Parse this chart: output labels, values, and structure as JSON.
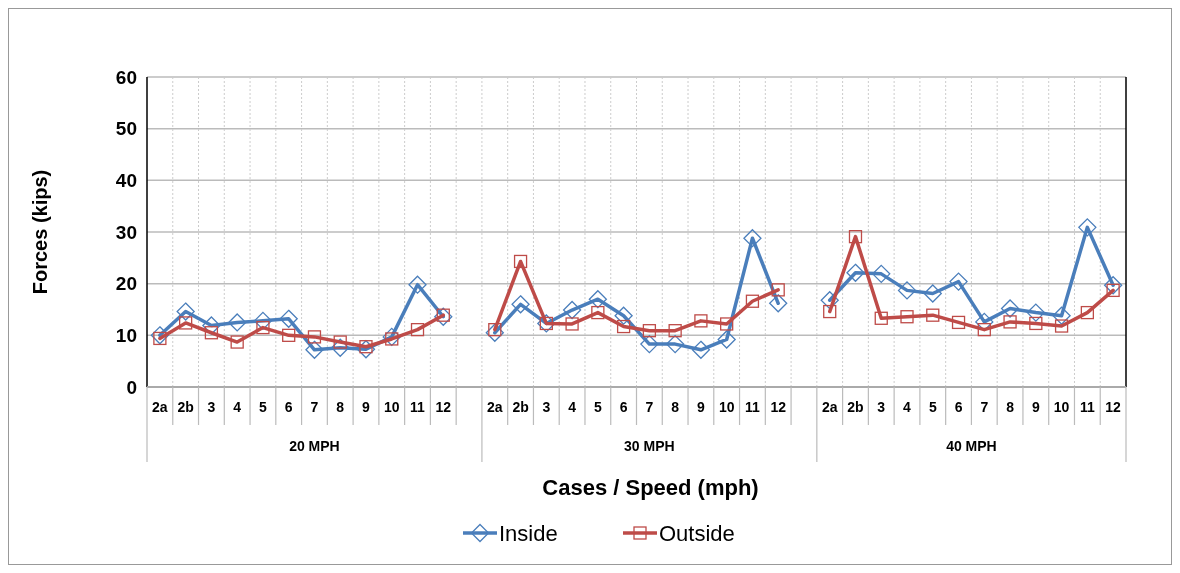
{
  "chart_data": {
    "type": "line",
    "xlabel": "Cases / Speed (mph)",
    "ylabel": "Forces (kips)",
    "categories": [
      "2a",
      "2b",
      "3",
      "4",
      "5",
      "6",
      "7",
      "8",
      "9",
      "10",
      "11",
      "12",
      null,
      "2a",
      "2b",
      "3",
      "4",
      "5",
      "6",
      "7",
      "8",
      "9",
      "10",
      "11",
      "12",
      null,
      "2a",
      "2b",
      "3",
      "4",
      "5",
      "6",
      "7",
      "8",
      "9",
      "10",
      "11",
      "12"
    ],
    "series": [
      {
        "name": "Inside",
        "color": "#4a7ebb",
        "marker": "diamond",
        "values": [
          10,
          14.6,
          11.9,
          12.5,
          12.8,
          13.2,
          7.2,
          7.6,
          7.3,
          9.7,
          19.8,
          13.6,
          null,
          10.5,
          16,
          12.3,
          14.9,
          17,
          13.8,
          8.3,
          8.3,
          7.2,
          9.2,
          28.8,
          16.2,
          null,
          16.8,
          22.1,
          21.9,
          18.7,
          18.1,
          20.4,
          12.6,
          15.2,
          14.4,
          13.8,
          30.9,
          19.7
        ]
      },
      {
        "name": "Outside",
        "color": "#be4b48",
        "marker": "square",
        "values": [
          9.4,
          12.4,
          10.5,
          8.7,
          11.5,
          10,
          9.7,
          8.7,
          7.8,
          9.3,
          11.1,
          13.9,
          null,
          11.1,
          24.3,
          12.3,
          12.2,
          14.4,
          11.7,
          10.9,
          10.9,
          12.8,
          12.2,
          16.6,
          18.8,
          null,
          14.6,
          29.1,
          13.3,
          13.6,
          13.9,
          12.5,
          11.1,
          12.6,
          12.3,
          11.8,
          14.4,
          18.7
        ]
      }
    ],
    "annotations": [
      "20 MPH",
      "30 MPH",
      "40 MPH"
    ],
    "ylim": [
      0,
      60
    ],
    "yticks": [
      0,
      10,
      20,
      30,
      40,
      50,
      60
    ],
    "grid": true,
    "legend": "bottom",
    "line_style": "solid"
  }
}
